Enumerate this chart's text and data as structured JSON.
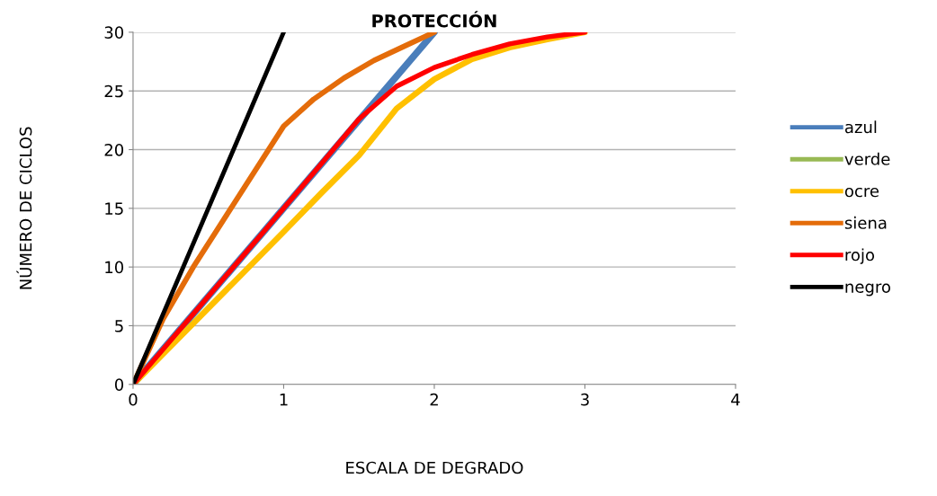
{
  "chart_data": {
    "type": "line",
    "title": "PROTECCIÓN",
    "xlabel": "ESCALA DE DEGRADO",
    "ylabel": "NÚMERO DE CICLOS",
    "series": [
      {
        "name": "azul",
        "color": "#4a7ebb",
        "x": [
          0,
          1,
          2
        ],
        "values": [
          0,
          15,
          30
        ]
      },
      {
        "name": "verde",
        "color": "#98b954"
      },
      {
        "name": "ocre",
        "color": "#ffc000",
        "x": [
          0,
          0.5,
          1,
          1.25,
          1.5,
          1.75,
          2,
          2.25,
          2.5,
          2.75,
          3
        ],
        "values": [
          0,
          6.5,
          13,
          16.3,
          19.5,
          23.5,
          26,
          27.7,
          28.7,
          29.4,
          30
        ]
      },
      {
        "name": "siena",
        "color": "#e46c0a",
        "x": [
          0,
          0.2,
          0.4,
          0.6,
          0.8,
          1,
          1.2,
          1.4,
          1.6,
          1.8,
          2
        ],
        "values": [
          0,
          5.6,
          10,
          14,
          18,
          22,
          24.3,
          26.1,
          27.6,
          28.8,
          30
        ]
      },
      {
        "name": "rojo",
        "color": "#ff0000",
        "x": [
          0,
          0.5,
          1,
          1.25,
          1.5,
          1.75,
          2,
          2.25,
          2.5,
          2.75,
          3
        ],
        "values": [
          0,
          7.5,
          15,
          18.8,
          22.6,
          25.4,
          27,
          28.1,
          29,
          29.6,
          30
        ]
      },
      {
        "name": "negro",
        "color": "#000000",
        "x": [
          0,
          1
        ],
        "values": [
          0,
          30
        ]
      }
    ],
    "xlim": [
      0,
      4
    ],
    "xticks": [
      0,
      1,
      2,
      3,
      4
    ],
    "ylim": [
      0,
      30
    ],
    "yticks": [
      0,
      5,
      10,
      15,
      20,
      25,
      30
    ],
    "grid": "y",
    "legend": "right",
    "marker": "none",
    "line_style": "solid"
  }
}
